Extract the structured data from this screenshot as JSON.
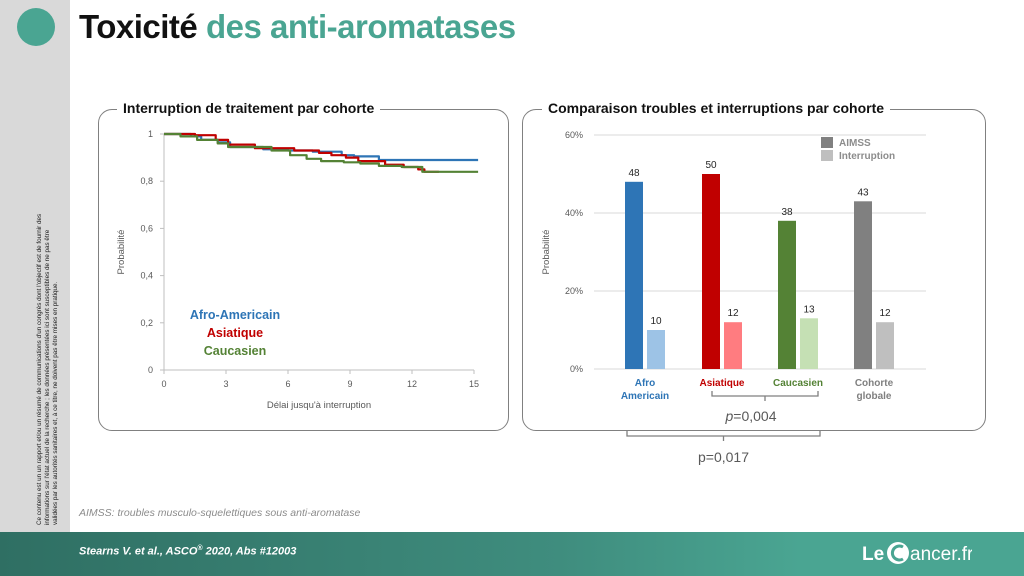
{
  "slide": {
    "title_part1": "Toxicité",
    "title_part2": "des anti-aromatases",
    "disclaimer": "Ce contenu est un un rapport et/ou un résumé de communications d'un congrès dont l'objectif est de fournir des informations sur l'état actuel de la recherche ; les données présentées ici sont susceptibles de ne pas être validées par les autorités sanitaires et, à ce titre, ne doivent pas être mises en pratique.",
    "footnote": "AIMSS: troubles musculo-squelettiques sous anti-aromatase",
    "citation": "Stearns V. et al., ASCO",
    "citation_sup": "®",
    "citation_end": " 2020, Abs #12003",
    "brand_left": "Le",
    "brand_right": "ancer.fr",
    "brand_color": "#4aa592"
  },
  "panel_left": {
    "title": "Interruption de traitement par cohorte"
  },
  "panel_right": {
    "title": "Comparaison troubles et interruptions par cohorte"
  },
  "chart_data": [
    {
      "type": "line",
      "title": "Interruption de traitement par cohorte",
      "xlabel": "Délai jusqu'à interruption",
      "ylabel": "Probabilité",
      "xlim": [
        0,
        15
      ],
      "ylim": [
        0,
        1
      ],
      "x_ticks": [
        "0",
        "3",
        "6",
        "9",
        "12",
        "15"
      ],
      "y_ticks": [
        "0",
        "0,2",
        "0,4",
        "0,6",
        "0,8",
        "1"
      ],
      "legend_position": "bottom-left",
      "series": [
        {
          "name": "Afro-Americain",
          "color": "#2e75b6",
          "points": [
            [
              0,
              1
            ],
            [
              1.3,
              0.99
            ],
            [
              1.8,
              0.975
            ],
            [
              2.6,
              0.965
            ],
            [
              3.2,
              0.945
            ],
            [
              4.8,
              0.935
            ],
            [
              6.0,
              0.93
            ],
            [
              7.2,
              0.925
            ],
            [
              8.6,
              0.91
            ],
            [
              9.2,
              0.905
            ],
            [
              10.4,
              0.89
            ],
            [
              12.0,
              0.89
            ],
            [
              15.2,
              0.89
            ]
          ]
        },
        {
          "name": "Asiatique",
          "color": "#c00000",
          "points": [
            [
              0,
              1
            ],
            [
              1.5,
              0.995
            ],
            [
              2.5,
              0.975
            ],
            [
              3.1,
              0.955
            ],
            [
              4.4,
              0.94
            ],
            [
              6.3,
              0.93
            ],
            [
              7.5,
              0.92
            ],
            [
              8.1,
              0.91
            ],
            [
              8.8,
              0.9
            ],
            [
              9.4,
              0.885
            ],
            [
              10.7,
              0.87
            ],
            [
              11.6,
              0.86
            ],
            [
              12.3,
              0.85
            ],
            [
              12.6,
              0.84
            ],
            [
              13.3,
              0.84
            ]
          ]
        },
        {
          "name": "Caucasien",
          "color": "#548235",
          "points": [
            [
              0,
              1
            ],
            [
              0.8,
              0.99
            ],
            [
              1.6,
              0.975
            ],
            [
              2.6,
              0.96
            ],
            [
              3.1,
              0.945
            ],
            [
              5.2,
              0.93
            ],
            [
              6.1,
              0.91
            ],
            [
              6.9,
              0.895
            ],
            [
              7.6,
              0.885
            ],
            [
              8.7,
              0.88
            ],
            [
              9.5,
              0.875
            ],
            [
              10.4,
              0.865
            ],
            [
              11.5,
              0.86
            ],
            [
              12.5,
              0.84
            ],
            [
              15.2,
              0.84
            ]
          ]
        }
      ]
    },
    {
      "type": "bar",
      "title": "Comparaison troubles et interruptions par cohorte",
      "ylabel": "Probabilité",
      "ylim": [
        0,
        60
      ],
      "y_ticks": [
        "0%",
        "20%",
        "40%",
        "60%"
      ],
      "legend_position": "top-right",
      "categories": [
        {
          "line1": "Afro",
          "line2": "Americain",
          "color": "#2e75b6"
        },
        {
          "line1": "Asiatique",
          "line2": "",
          "color": "#c00000"
        },
        {
          "line1": "Caucasien",
          "line2": "",
          "color": "#548235"
        },
        {
          "line1": "Cohorte",
          "line2": "globale",
          "color": "#7f7f7f"
        }
      ],
      "series": [
        {
          "name": "AIMSS",
          "values": [
            48,
            50,
            38,
            43
          ],
          "labels": [
            "48",
            "50",
            "38",
            "43"
          ],
          "colors": [
            "#2e75b6",
            "#c00000",
            "#548235",
            "#808080"
          ],
          "legend_color": "#808080"
        },
        {
          "name": "Interruption",
          "values": [
            10,
            12,
            13,
            12
          ],
          "labels": [
            "10",
            "12",
            "13",
            "12"
          ],
          "colors": [
            "#9dc3e6",
            "#ff7c80",
            "#c5e0b4",
            "#bfbfbf"
          ],
          "legend_color": "#bfbfbf"
        }
      ],
      "annotations": [
        {
          "text": "p=0,004",
          "italic_prefix": "p",
          "rest": "=0,004",
          "from_category": 1,
          "to_category": 2
        },
        {
          "text": "p=0,017",
          "from_category": 0,
          "to_category": 2
        }
      ]
    }
  ]
}
